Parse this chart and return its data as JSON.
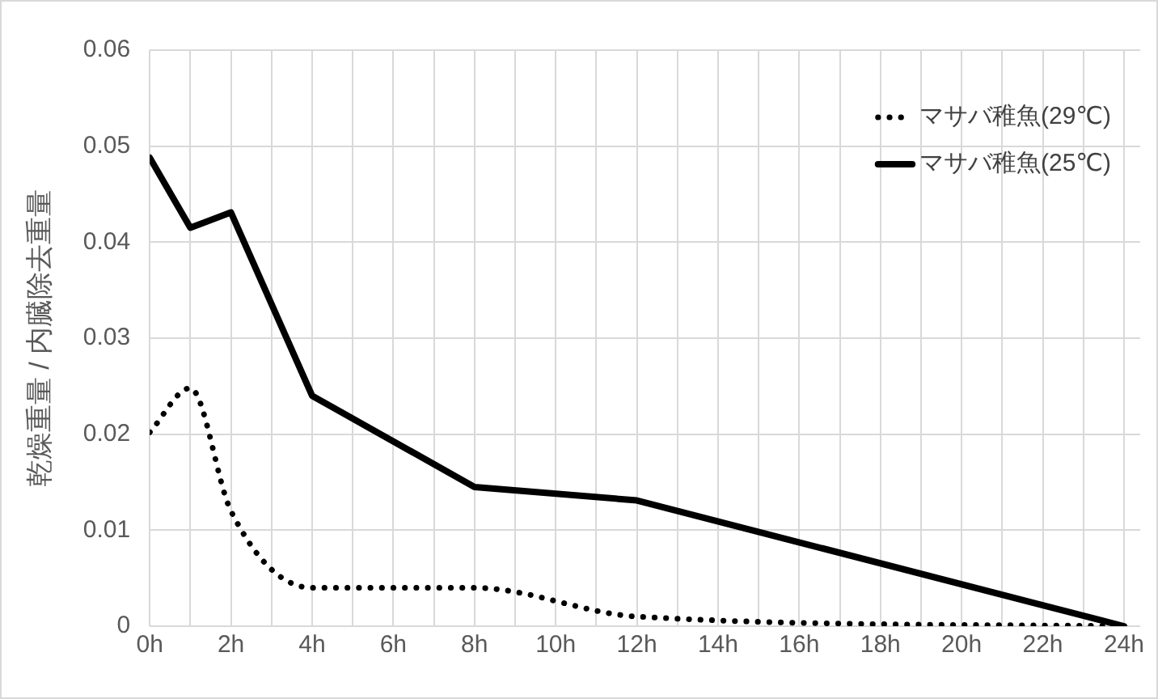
{
  "chart_data": {
    "type": "line",
    "ylabel": "乾燥重量 / 内臓除去重量",
    "xlim": [
      0,
      24.4
    ],
    "xticks": [
      {
        "value": 0,
        "label": "0h"
      },
      {
        "value": 1,
        "label": null
      },
      {
        "value": 2,
        "label": "2h"
      },
      {
        "value": 3,
        "label": null
      },
      {
        "value": 4,
        "label": "4h"
      },
      {
        "value": 5,
        "label": null
      },
      {
        "value": 6,
        "label": "6h"
      },
      {
        "value": 7,
        "label": null
      },
      {
        "value": 8,
        "label": "8h"
      },
      {
        "value": 9,
        "label": null
      },
      {
        "value": 10,
        "label": "10h"
      },
      {
        "value": 11,
        "label": null
      },
      {
        "value": 12,
        "label": "12h"
      },
      {
        "value": 13,
        "label": null
      },
      {
        "value": 14,
        "label": "14h"
      },
      {
        "value": 15,
        "label": null
      },
      {
        "value": 16,
        "label": "16h"
      },
      {
        "value": 17,
        "label": null
      },
      {
        "value": 18,
        "label": "18h"
      },
      {
        "value": 19,
        "label": null
      },
      {
        "value": 20,
        "label": "20h"
      },
      {
        "value": 21,
        "label": null
      },
      {
        "value": 22,
        "label": "22h"
      },
      {
        "value": 23,
        "label": null
      },
      {
        "value": 24,
        "label": "24h"
      }
    ],
    "ylim": [
      0,
      0.06
    ],
    "yticks": [
      0,
      0.01,
      0.02,
      0.03,
      0.04,
      0.05,
      0.06
    ],
    "grid": true,
    "legend": "top right",
    "marker": "none",
    "series": [
      {
        "name": "マサバ稚魚(29℃)",
        "color": "#000000",
        "line_style": "dotted",
        "x": [
          0,
          1,
          2,
          4,
          8,
          12,
          24
        ],
        "values": [
          0.0202,
          0.0248,
          0.012,
          0.004,
          0.004,
          0.001,
          0
        ]
      },
      {
        "name": "マサバ稚魚(25℃)",
        "color": "#000000",
        "line_style": "solid",
        "x": [
          0,
          1,
          2,
          4,
          8,
          12,
          24
        ],
        "values": [
          0.0488,
          0.0415,
          0.0431,
          0.024,
          0.0145,
          0.0131,
          0
        ]
      }
    ]
  }
}
